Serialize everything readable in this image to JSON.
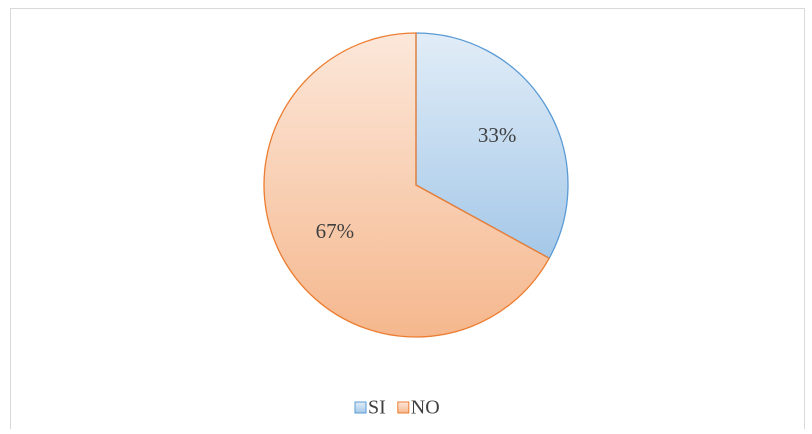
{
  "chart_data": {
    "type": "pie",
    "categories": [
      "SI",
      "NO"
    ],
    "values": [
      33,
      67
    ],
    "value_labels": [
      "33%",
      "67%"
    ],
    "colors": [
      "#5b9bd5",
      "#ed7d31"
    ]
  }
}
